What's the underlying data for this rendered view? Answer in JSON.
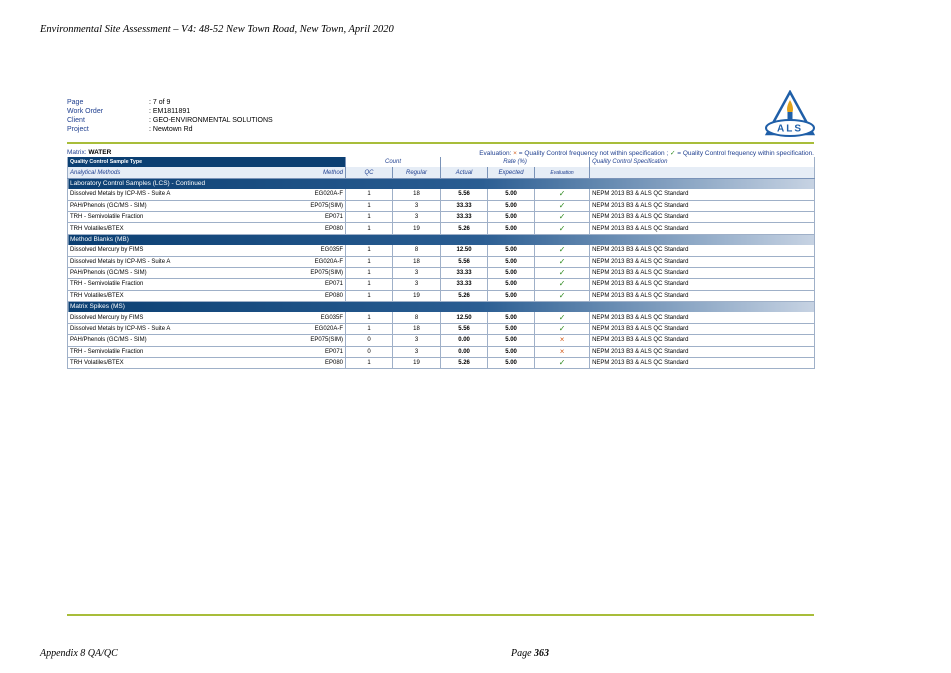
{
  "doc_header": "Environmental Site Assessment – V4: 48-52 New Town Road, New Town, April 2020",
  "meta": [
    {
      "label": "Page",
      "value": ": 7 of 9"
    },
    {
      "label": "Work Order",
      "value": ": EM1811891"
    },
    {
      "label": "Client",
      "value": ": GEO-ENVIRONMENTAL SOLUTIONS"
    },
    {
      "label": "Project",
      "value": ": Newtown Rd"
    }
  ],
  "logo": {
    "text": "ALS",
    "color": "#1f5fa8",
    "flame": "#e0a21a"
  },
  "matrix": {
    "label": "Matrix:",
    "value": "WATER"
  },
  "evaluation": {
    "prefix": "Evaluation: ",
    "x_symbol": "×",
    "x_text": " = Quality Control frequency not within specification ; ",
    "check_symbol": "✓",
    "check_text": " = Quality Control frequency within specification."
  },
  "headers": {
    "qc_type": "Quality Control Sample Type",
    "count": "Count",
    "rate": "Rate (%)",
    "spec": "Quality Control Specification",
    "analytical_methods": "Analytical Methods",
    "method": "Method",
    "qc": "QC",
    "regular": "Regular",
    "actual": "Actual",
    "expected": "Expected",
    "evaluation": "Evaluation"
  },
  "sections": [
    {
      "title": "Laboratory Control Samples (LCS) - Continued",
      "rows": [
        {
          "analyte": "Dissolved Metals by ICP-MS - Suite A",
          "method": "EG020A-F",
          "qc": "1",
          "regular": "18",
          "actual": "5.56",
          "expected": "5.00",
          "eval": "✓",
          "spec": "NEPM 2013 B3 & ALS QC Standard"
        },
        {
          "analyte": "PAH/Phenols (GC/MS - SIM)",
          "method": "EP075(SIM)",
          "qc": "1",
          "regular": "3",
          "actual": "33.33",
          "expected": "5.00",
          "eval": "✓",
          "spec": "NEPM 2013 B3 & ALS QC Standard"
        },
        {
          "analyte": "TRH - Semivolatile Fraction",
          "method": "EP071",
          "qc": "1",
          "regular": "3",
          "actual": "33.33",
          "expected": "5.00",
          "eval": "✓",
          "spec": "NEPM 2013 B3 & ALS QC Standard"
        },
        {
          "analyte": "TRH Volatiles/BTEX",
          "method": "EP080",
          "qc": "1",
          "regular": "19",
          "actual": "5.26",
          "expected": "5.00",
          "eval": "✓",
          "spec": "NEPM 2013 B3 & ALS QC Standard"
        }
      ]
    },
    {
      "title": "Method Blanks (MB)",
      "rows": [
        {
          "analyte": "Dissolved Mercury by FIMS",
          "method": "EG035F",
          "qc": "1",
          "regular": "8",
          "actual": "12.50",
          "expected": "5.00",
          "eval": "✓",
          "spec": "NEPM 2013 B3 & ALS QC Standard"
        },
        {
          "analyte": "Dissolved Metals by ICP-MS - Suite A",
          "method": "EG020A-F",
          "qc": "1",
          "regular": "18",
          "actual": "5.56",
          "expected": "5.00",
          "eval": "✓",
          "spec": "NEPM 2013 B3 & ALS QC Standard"
        },
        {
          "analyte": "PAH/Phenols (GC/MS - SIM)",
          "method": "EP075(SIM)",
          "qc": "1",
          "regular": "3",
          "actual": "33.33",
          "expected": "5.00",
          "eval": "✓",
          "spec": "NEPM 2013 B3 & ALS QC Standard"
        },
        {
          "analyte": "TRH - Semivolatile Fraction",
          "method": "EP071",
          "qc": "1",
          "regular": "3",
          "actual": "33.33",
          "expected": "5.00",
          "eval": "✓",
          "spec": "NEPM 2013 B3 & ALS QC Standard"
        },
        {
          "analyte": "TRH Volatiles/BTEX",
          "method": "EP080",
          "qc": "1",
          "regular": "19",
          "actual": "5.26",
          "expected": "5.00",
          "eval": "✓",
          "spec": "NEPM 2013 B3 & ALS QC Standard"
        }
      ]
    },
    {
      "title": "Matrix Spikes (MS)",
      "rows": [
        {
          "analyte": "Dissolved Mercury by FIMS",
          "method": "EG035F",
          "qc": "1",
          "regular": "8",
          "actual": "12.50",
          "expected": "5.00",
          "eval": "✓",
          "spec": "NEPM 2013 B3 & ALS QC Standard"
        },
        {
          "analyte": "Dissolved Metals by ICP-MS - Suite A",
          "method": "EG020A-F",
          "qc": "1",
          "regular": "18",
          "actual": "5.56",
          "expected": "5.00",
          "eval": "✓",
          "spec": "NEPM 2013 B3 & ALS QC Standard"
        },
        {
          "analyte": "PAH/Phenols (GC/MS - SIM)",
          "method": "EP075(SIM)",
          "qc": "0",
          "regular": "3",
          "actual": "0.00",
          "expected": "5.00",
          "eval": "×",
          "spec": "NEPM 2013 B3 & ALS QC Standard"
        },
        {
          "analyte": "TRH - Semivolatile Fraction",
          "method": "EP071",
          "qc": "0",
          "regular": "3",
          "actual": "0.00",
          "expected": "5.00",
          "eval": "×",
          "spec": "NEPM 2013 B3 & ALS QC Standard"
        },
        {
          "analyte": "TRH Volatiles/BTEX",
          "method": "EP080",
          "qc": "1",
          "regular": "19",
          "actual": "5.26",
          "expected": "5.00",
          "eval": "✓",
          "spec": "NEPM 2013 B3 & ALS QC Standard"
        }
      ]
    }
  ],
  "footer": {
    "left": "Appendix 8 QA/QC",
    "page_label": "Page ",
    "page_number": "363"
  },
  "colors": {
    "accent_green": "#a8bd3a",
    "header_navy": "#0b3f72",
    "pass": "#2f8a1f",
    "fail": "#d45a1a"
  }
}
